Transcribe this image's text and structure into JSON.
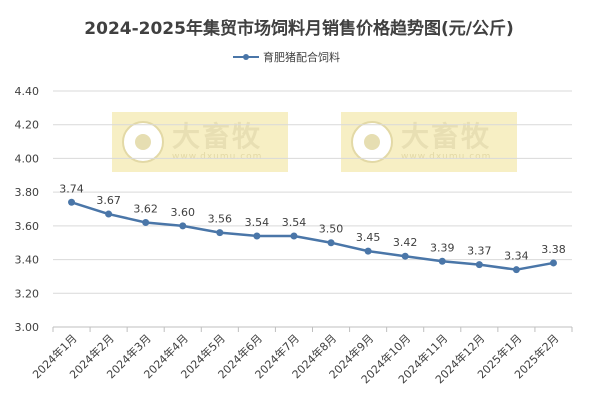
{
  "chart_data": {
    "type": "line",
    "title": "2024-2025年集贸市场饲料月销售价格趋势图(元/公斤)",
    "categories": [
      "2024年1月",
      "2024年2月",
      "2024年3月",
      "2024年4月",
      "2024年5月",
      "2024年6月",
      "2024年7月",
      "2024年8月",
      "2024年9月",
      "2024年10月",
      "2024年11月",
      "2024年12月",
      "2025年1月",
      "2025年2月"
    ],
    "series": [
      {
        "name": "育肥猪配合饲料",
        "values": [
          3.74,
          3.67,
          3.62,
          3.6,
          3.56,
          3.54,
          3.54,
          3.5,
          3.45,
          3.42,
          3.39,
          3.37,
          3.34,
          3.38
        ],
        "color": "#4a76a8"
      }
    ],
    "ylim": [
      3.0,
      4.4
    ],
    "yticks": [
      "3.00",
      "3.20",
      "3.40",
      "3.60",
      "3.80",
      "4.00",
      "4.20",
      "4.40"
    ],
    "grid": true,
    "legend_position": "top"
  },
  "watermark": {
    "brand": "大畜牧",
    "url": "www.dxumu.com"
  }
}
